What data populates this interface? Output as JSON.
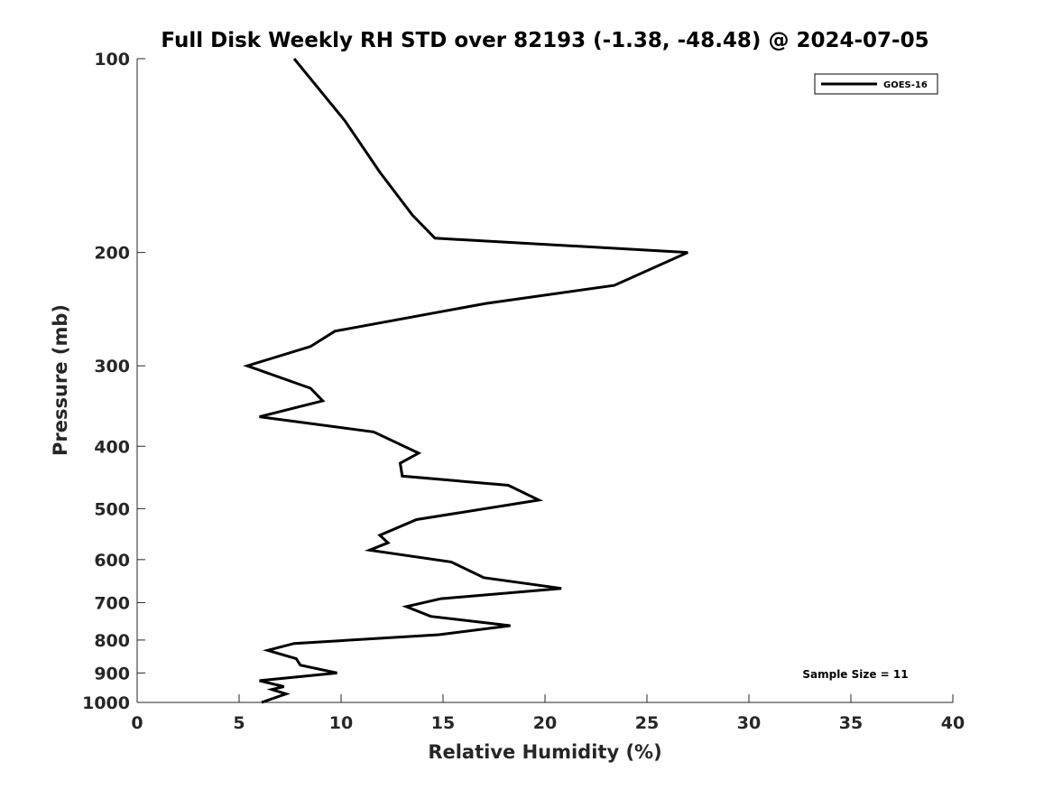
{
  "chart_data": {
    "type": "line",
    "title": "Full Disk Weekly RH STD over 82193 (-1.38, -48.48) @ 2024-07-05",
    "xlabel": "Relative Humidity (%)",
    "ylabel": "Pressure (mb)",
    "xlim": [
      0,
      40
    ],
    "ylim": [
      100,
      1000
    ],
    "y_scale": "log",
    "y_reversed": true,
    "grid": false,
    "legend_position": "top-right",
    "x_ticks": [
      0,
      5,
      10,
      15,
      20,
      25,
      30,
      35,
      40
    ],
    "x_tick_labels": [
      "0",
      "5",
      "10",
      "15",
      "20",
      "25",
      "30",
      "35",
      "40"
    ],
    "y_ticks": [
      100,
      200,
      300,
      400,
      500,
      600,
      700,
      800,
      900,
      1000
    ],
    "y_tick_labels": [
      "100",
      "200",
      "300",
      "400",
      "500",
      "600",
      "700",
      "800",
      "900",
      "1000"
    ],
    "annotation": "Sample Size = 11",
    "series": [
      {
        "name": "GOES-16",
        "color": "#000000",
        "x": [
          7.7,
          10.2,
          11.9,
          13.5,
          14.6,
          27.0,
          23.4,
          17.1,
          9.7,
          8.5,
          5.4,
          8.5,
          9.1,
          6.0,
          11.6,
          13.8,
          12.9,
          13.0,
          18.2,
          19.7,
          13.7,
          11.9,
          12.3,
          11.4,
          15.4,
          17.0,
          20.8,
          14.9,
          13.2,
          14.4,
          18.3,
          14.8,
          7.7,
          6.4,
          7.8,
          8.0,
          9.8,
          6.0,
          7.2,
          6.6,
          7.3,
          6.1
        ],
        "y": [
          100,
          125,
          150,
          175,
          190,
          200,
          225,
          240,
          265,
          280,
          300,
          325,
          340,
          360,
          380,
          410,
          425,
          445,
          460,
          485,
          520,
          550,
          565,
          580,
          605,
          640,
          665,
          690,
          710,
          735,
          760,
          785,
          810,
          830,
          855,
          875,
          900,
          925,
          945,
          955,
          970,
          1000
        ]
      }
    ]
  }
}
